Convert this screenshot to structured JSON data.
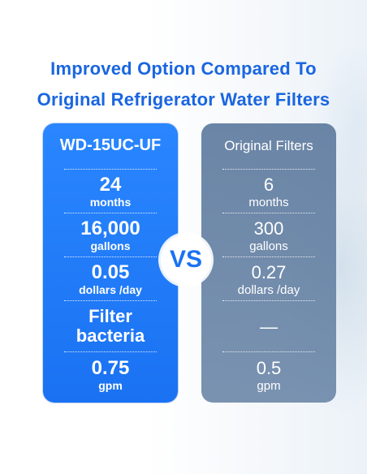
{
  "title": {
    "line1": "Improved Option Compared To",
    "line2": "Original Refrigerator Water Filters"
  },
  "left_panel": {
    "heading": "WD-15UC-UF",
    "rows": [
      {
        "value": "24",
        "unit": "months"
      },
      {
        "value": "16,000",
        "unit": "gallons"
      },
      {
        "value": "0.05",
        "unit": "dollars /day"
      },
      {
        "value": "Filter",
        "unit": "bacteria"
      },
      {
        "value": "0.75",
        "unit": "gpm"
      }
    ]
  },
  "right_panel": {
    "heading": "Original Filters",
    "rows": [
      {
        "value": "6",
        "unit": "months"
      },
      {
        "value": "300",
        "unit": "gallons"
      },
      {
        "value": "0.27",
        "unit": "dollars /day"
      },
      {
        "value": "—",
        "unit": ""
      },
      {
        "value": "0.5",
        "unit": "gpm"
      }
    ]
  },
  "vs_badge": "VS",
  "colors": {
    "accent_blue": "#1a72f2",
    "title_blue": "#1a66e0",
    "original_panel": "#6984a6"
  }
}
